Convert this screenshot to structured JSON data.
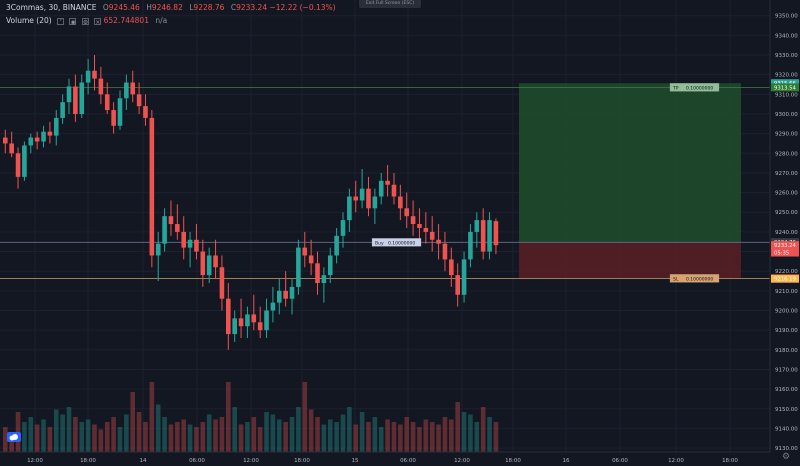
{
  "legend": {
    "symbol": "3Commas, 30, BINANCE",
    "open_label": "O",
    "open": "9245.46",
    "high_label": "H",
    "high": "9246.82",
    "low_label": "L",
    "low": "9228.76",
    "close_label": "C",
    "close": "9233.24",
    "change": "−12.22 (−0.13%)",
    "volume_label": "Volume (20)",
    "volume_value": "652.744801",
    "volume_ma": "n/a"
  },
  "toolbar": {
    "exit_fullscreen": "Exit Full Screen (ESC)"
  },
  "colors": {
    "up": "#26a69a",
    "down": "#ef5350",
    "tp_zone": "#1e4d2b",
    "sl_zone": "#5a1e24",
    "background": "#131722"
  },
  "price_axis": {
    "ticks": [
      "9350.00",
      "9340.00",
      "9330.00",
      "9320.00",
      "9310.00",
      "9300.00",
      "9290.00",
      "9280.00",
      "9270.00",
      "9260.00",
      "9250.00",
      "9240.00",
      "9230.00",
      "9220.00",
      "9210.00",
      "9200.00",
      "9190.00",
      "9180.00",
      "9170.00",
      "9160.00",
      "9150.00",
      "9140.00",
      "9130.00"
    ],
    "tick_values": [
      9350,
      9340,
      9330,
      9320,
      9310,
      9300,
      9290,
      9280,
      9270,
      9260,
      9250,
      9240,
      9230,
      9220,
      9210,
      9200,
      9190,
      9180,
      9170,
      9160,
      9150,
      9140,
      9130
    ],
    "range": [
      9128,
      9358
    ]
  },
  "time_axis": {
    "labels": [
      "12:00",
      "18:00",
      "14",
      "06:00",
      "12:00",
      "18:00",
      "15",
      "06:00",
      "12:00",
      "18:00",
      "16",
      "06:00",
      "12:00",
      "18:00"
    ]
  },
  "badges": [
    {
      "text": "9315.66",
      "value": 9315.66,
      "color": "#26a69a"
    },
    {
      "text": "9313.54",
      "value": 9313.54,
      "color": "#2e7d32"
    },
    {
      "text": "9234.66",
      "value": 9234.66,
      "color": "#2962ff"
    },
    {
      "text": "9234.76",
      "value": 9234.76,
      "color": "#363a45"
    },
    {
      "text": "9233.24",
      "value": 9233.24,
      "color": "#ef5350"
    },
    {
      "text": "05:35",
      "value": 9229.5,
      "color": "#ef5350"
    },
    {
      "text": "9216.34",
      "value": 9216.34,
      "color": "#c62828"
    },
    {
      "text": "9216.19",
      "value": 9216.19,
      "color": "#ffb74d"
    }
  ],
  "position": {
    "take_profit": 9315.66,
    "entry": 9234.66,
    "stop_loss": 9216.34,
    "buy_label": "Buy",
    "buy_value": "0.10000000",
    "tp_label": "TP",
    "tp_value": "0.10000000",
    "sl_label": "SL",
    "sl_value": "0.10000000"
  },
  "chart_data": {
    "type": "candlestick",
    "symbol": "3Commas, 30, BINANCE",
    "ylim": [
      9128,
      9358
    ],
    "candles": [
      [
        9288,
        9292,
        9280,
        9285
      ],
      [
        9285,
        9291,
        9278,
        9280
      ],
      [
        9280,
        9283,
        9262,
        9268
      ],
      [
        9268,
        9286,
        9266,
        9284
      ],
      [
        9284,
        9290,
        9280,
        9288
      ],
      [
        9288,
        9291,
        9282,
        9286
      ],
      [
        9286,
        9294,
        9283,
        9291
      ],
      [
        9291,
        9296,
        9285,
        9289
      ],
      [
        9289,
        9302,
        9284,
        9298
      ],
      [
        9298,
        9310,
        9295,
        9306
      ],
      [
        9306,
        9318,
        9300,
        9314
      ],
      [
        9314,
        9320,
        9296,
        9300
      ],
      [
        9300,
        9320,
        9298,
        9316
      ],
      [
        9316,
        9328,
        9310,
        9322
      ],
      [
        9322,
        9330,
        9312,
        9318
      ],
      [
        9318,
        9324,
        9305,
        9310
      ],
      [
        9310,
        9316,
        9300,
        9302
      ],
      [
        9302,
        9306,
        9290,
        9294
      ],
      [
        9294,
        9312,
        9292,
        9308
      ],
      [
        9308,
        9320,
        9302,
        9316
      ],
      [
        9316,
        9322,
        9306,
        9310
      ],
      [
        9310,
        9316,
        9300,
        9304
      ],
      [
        9304,
        9310,
        9294,
        9298
      ],
      [
        9298,
        9302,
        9222,
        9228
      ],
      [
        9228,
        9240,
        9215,
        9234
      ],
      [
        9234,
        9252,
        9230,
        9248
      ],
      [
        9248,
        9256,
        9238,
        9244
      ],
      [
        9244,
        9254,
        9236,
        9240
      ],
      [
        9240,
        9248,
        9226,
        9232
      ],
      [
        9232,
        9240,
        9222,
        9236
      ],
      [
        9236,
        9244,
        9226,
        9230
      ],
      [
        9230,
        9236,
        9212,
        9218
      ],
      [
        9218,
        9232,
        9214,
        9228
      ],
      [
        9228,
        9236,
        9216,
        9222
      ],
      [
        9222,
        9228,
        9200,
        9206
      ],
      [
        9206,
        9214,
        9180,
        9188
      ],
      [
        9188,
        9200,
        9184,
        9196
      ],
      [
        9196,
        9206,
        9186,
        9192
      ],
      [
        9192,
        9202,
        9186,
        9198
      ],
      [
        9198,
        9208,
        9190,
        9194
      ],
      [
        9194,
        9202,
        9186,
        9190
      ],
      [
        9190,
        9206,
        9186,
        9200
      ],
      [
        9200,
        9212,
        9194,
        9204
      ],
      [
        9204,
        9216,
        9198,
        9210
      ],
      [
        9210,
        9220,
        9202,
        9206
      ],
      [
        9206,
        9216,
        9198,
        9212
      ],
      [
        9212,
        9236,
        9208,
        9232
      ],
      [
        9232,
        9240,
        9222,
        9228
      ],
      [
        9228,
        9236,
        9218,
        9224
      ],
      [
        9224,
        9230,
        9208,
        9214
      ],
      [
        9214,
        9222,
        9204,
        9218
      ],
      [
        9218,
        9232,
        9214,
        9228
      ],
      [
        9228,
        9242,
        9224,
        9238
      ],
      [
        9238,
        9250,
        9232,
        9246
      ],
      [
        9246,
        9262,
        9240,
        9258
      ],
      [
        9258,
        9266,
        9250,
        9256
      ],
      [
        9256,
        9272,
        9252,
        9262
      ],
      [
        9262,
        9268,
        9248,
        9252
      ],
      [
        9252,
        9262,
        9244,
        9258
      ],
      [
        9258,
        9270,
        9254,
        9266
      ],
      [
        9266,
        9274,
        9258,
        9264
      ],
      [
        9264,
        9270,
        9254,
        9258
      ],
      [
        9258,
        9264,
        9246,
        9252
      ],
      [
        9252,
        9260,
        9242,
        9248
      ],
      [
        9248,
        9256,
        9238,
        9244
      ],
      [
        9244,
        9252,
        9236,
        9242
      ],
      [
        9242,
        9250,
        9234,
        9240
      ],
      [
        9240,
        9248,
        9230,
        9236
      ],
      [
        9236,
        9244,
        9226,
        9234
      ],
      [
        9234,
        9240,
        9220,
        9226
      ],
      [
        9226,
        9232,
        9212,
        9218
      ],
      [
        9218,
        9224,
        9202,
        9208
      ],
      [
        9208,
        9230,
        9204,
        9226
      ],
      [
        9226,
        9244,
        9222,
        9240
      ],
      [
        9240,
        9250,
        9232,
        9246
      ],
      [
        9246,
        9252,
        9226,
        9230
      ],
      [
        9230,
        9250,
        9226,
        9246
      ],
      [
        9245.46,
        9246.82,
        9228.76,
        9233.24
      ]
    ],
    "volumes": [
      50,
      40,
      80,
      60,
      70,
      55,
      65,
      50,
      85,
      75,
      90,
      70,
      60,
      65,
      55,
      45,
      60,
      70,
      50,
      75,
      120,
      80,
      60,
      140,
      95,
      70,
      55,
      60,
      65,
      55,
      50,
      60,
      75,
      65,
      70,
      140,
      90,
      55,
      60,
      70,
      50,
      80,
      75,
      65,
      60,
      70,
      90,
      140,
      85,
      70,
      55,
      65,
      60,
      75,
      90,
      55,
      80,
      60,
      70,
      50,
      65,
      60,
      55,
      70,
      60,
      50,
      65,
      60,
      55,
      70,
      65,
      100,
      80,
      75,
      60,
      90,
      70,
      60
    ],
    "volume_axis_max": 220
  }
}
